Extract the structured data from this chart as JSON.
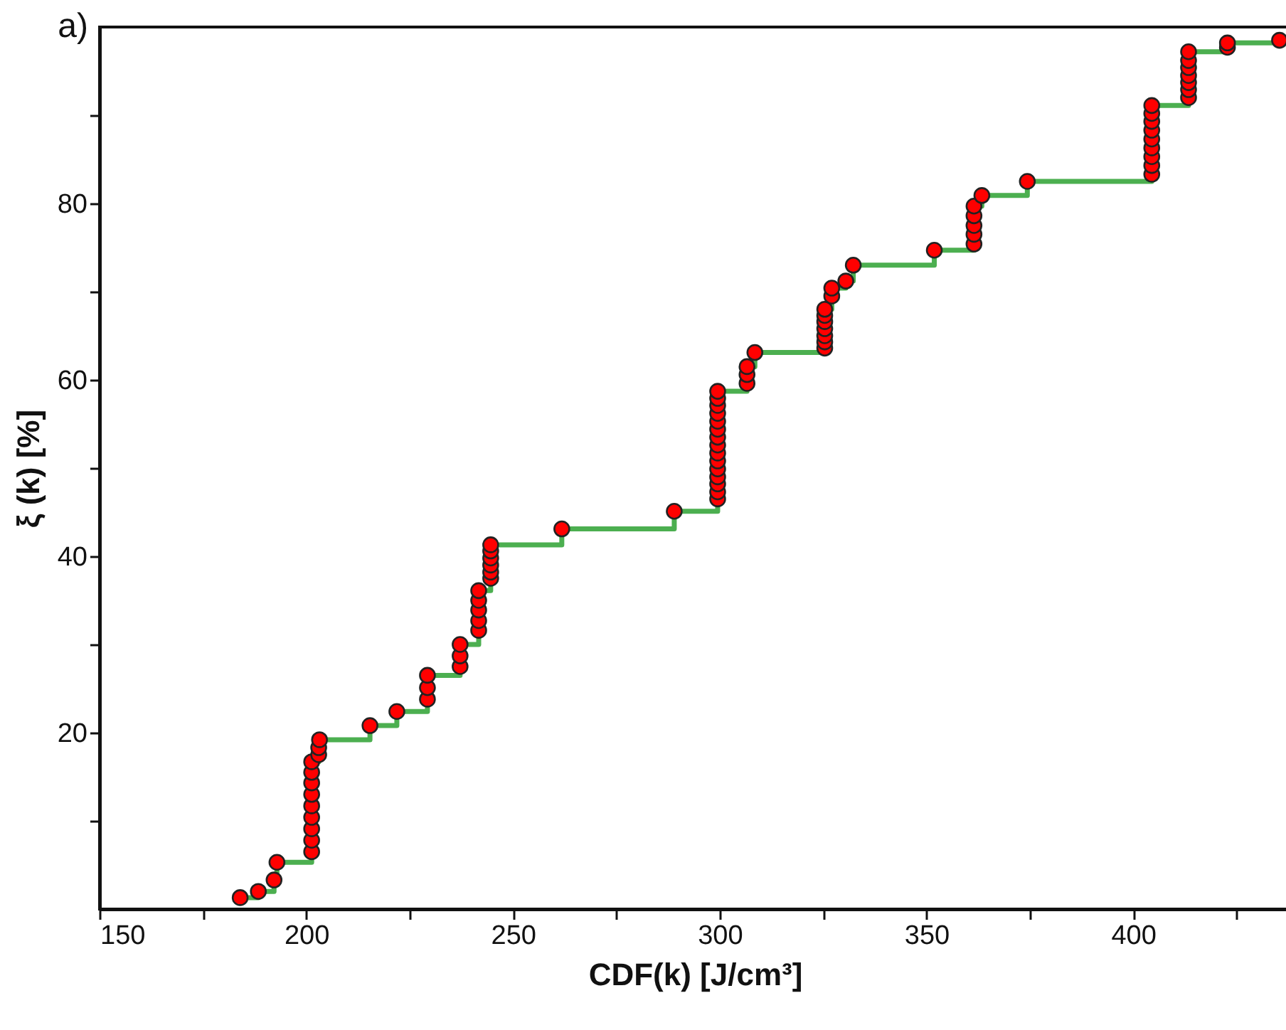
{
  "chart_data": {
    "type": "step",
    "xlabel": "CDF(k)  [J/cm³]",
    "ylabel": "ξ (k) [%]",
    "annotations": [
      "a)"
    ],
    "x": [
      184.0,
      188.4,
      192.2,
      192.9,
      201.3,
      201.3,
      201.3,
      201.3,
      201.3,
      201.3,
      201.3,
      201.3,
      201.3,
      203.0,
      203.0,
      203.2,
      215.4,
      221.9,
      229.3,
      229.3,
      229.3,
      237.2,
      237.2,
      237.2,
      241.7,
      241.7,
      241.7,
      241.7,
      241.7,
      244.6,
      244.6,
      244.6,
      244.6,
      244.6,
      244.6,
      261.8,
      289.0,
      299.5,
      299.5,
      299.5,
      299.5,
      299.5,
      299.5,
      299.5,
      299.5,
      299.5,
      299.5,
      299.5,
      299.5,
      299.5,
      299.5,
      299.5,
      306.6,
      306.6,
      306.6,
      308.5,
      325.4,
      325.4,
      325.4,
      325.4,
      325.4,
      325.4,
      325.4,
      327.1,
      327.1,
      330.5,
      332.3,
      351.9,
      361.5,
      361.5,
      361.5,
      361.5,
      361.5,
      363.4,
      374.4,
      404.5,
      404.5,
      404.5,
      404.5,
      404.5,
      404.5,
      404.5,
      404.5,
      404.5,
      413.4,
      413.4,
      413.4,
      413.4,
      413.4,
      413.4,
      413.4,
      422.8,
      422.8,
      435.4
    ],
    "series": [
      {
        "type": "scatter",
        "color": "#ff0000",
        "values": [
          1.3,
          2.0,
          3.3,
          5.3,
          6.5,
          7.8,
          9.1,
          10.4,
          11.7,
          13.0,
          14.3,
          15.5,
          16.7,
          17.5,
          18.3,
          19.2,
          20.8,
          22.4,
          23.8,
          25.1,
          26.5,
          27.5,
          28.7,
          30.0,
          31.6,
          32.7,
          33.9,
          35.0,
          36.1,
          37.5,
          38.2,
          39.0,
          39.8,
          40.6,
          41.3,
          43.1,
          45.1,
          46.5,
          47.3,
          48.2,
          49.0,
          49.9,
          50.8,
          51.7,
          52.6,
          53.5,
          54.4,
          55.3,
          56.2,
          57.1,
          57.9,
          58.7,
          59.6,
          60.6,
          61.5,
          63.1,
          63.6,
          64.3,
          65.0,
          65.8,
          66.6,
          67.3,
          68.0,
          69.5,
          70.4,
          71.2,
          73.0,
          74.7,
          75.4,
          76.5,
          77.5,
          78.6,
          79.7,
          80.9,
          82.5,
          83.3,
          84.3,
          85.3,
          86.3,
          87.3,
          88.3,
          89.3,
          90.2,
          91.1,
          92.0,
          92.9,
          93.7,
          94.5,
          95.4,
          96.2,
          97.2,
          97.7,
          98.2,
          98.5
        ]
      },
      {
        "color": "#4caf50",
        "marker": "none",
        "x": [
          184.0,
          188.4,
          192.2,
          192.9,
          201.3,
          203.0,
          203.2,
          215.4,
          221.9,
          229.3,
          237.2,
          241.7,
          244.6,
          261.8,
          289.0,
          299.5,
          306.6,
          308.5,
          325.4,
          327.1,
          330.5,
          332.3,
          351.9,
          361.5,
          363.4,
          374.4,
          404.5,
          413.4,
          422.8,
          435.4
        ],
        "values": [
          1.3,
          2.0,
          3.3,
          5.3,
          16.7,
          18.3,
          19.2,
          20.8,
          22.4,
          26.5,
          30.0,
          36.1,
          41.3,
          43.1,
          45.1,
          58.7,
          61.5,
          63.1,
          68.0,
          70.4,
          71.2,
          73.0,
          74.7,
          79.7,
          80.9,
          82.5,
          91.1,
          97.2,
          98.2,
          98.5
        ]
      }
    ],
    "marker": "circle",
    "xlim": [
      150,
      438
    ],
    "ylim": [
      0,
      100
    ],
    "xticks": [
      150,
      {
        "value": 175,
        "label": null
      },
      200,
      {
        "value": 225,
        "label": null
      },
      250,
      {
        "value": 275,
        "label": null
      },
      300,
      {
        "value": 325,
        "label": null
      },
      350,
      {
        "value": 375,
        "label": null
      },
      400,
      {
        "value": 425,
        "label": null
      }
    ],
    "yticks": [
      {
        "value": 10,
        "label": null
      },
      20,
      {
        "value": 30,
        "label": null
      },
      40,
      {
        "value": 50,
        "label": null
      },
      60,
      {
        "value": 70,
        "label": null
      },
      80,
      {
        "value": 90,
        "label": null
      }
    ]
  }
}
